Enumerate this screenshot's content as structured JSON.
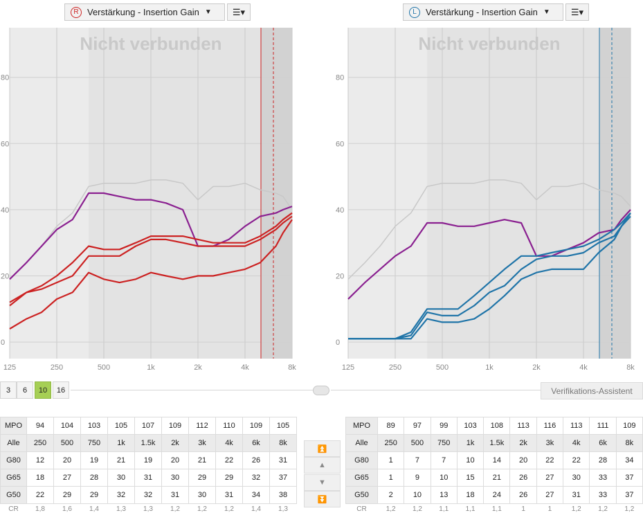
{
  "right_panel": {
    "side_badge": "R",
    "dropdown_label": "Verstärkung - Insertion Gain",
    "status_watermark": "Nicht verbunden",
    "accent_color": "#cc2222",
    "y_ticks": [
      "80",
      "60",
      "40",
      "20",
      "0"
    ],
    "x_ticks": [
      "125",
      "250",
      "500",
      "1k",
      "2k",
      "4k",
      "8k"
    ]
  },
  "left_panel": {
    "side_badge": "L",
    "dropdown_label": "Verstärkung - Insertion Gain",
    "status_watermark": "Nicht verbunden",
    "accent_color": "#1f74a8",
    "y_ticks": [
      "80",
      "60",
      "40",
      "20",
      "0"
    ],
    "x_ticks": [
      "125",
      "250",
      "500",
      "1k",
      "2k",
      "4k",
      "8k"
    ]
  },
  "menu_icon": "menu-list-icon",
  "channel_selector": {
    "options": [
      "3",
      "6",
      "10",
      "16"
    ],
    "active": "10"
  },
  "link_icon": "link-chain-icon",
  "verify_button": "Verifikations-Assistent",
  "nav_buttons": [
    "double-up-icon",
    "up-icon",
    "down-icon",
    "double-down-icon"
  ],
  "right_table": {
    "mpo_label": "MPO",
    "mpo": [
      "94",
      "104",
      "103",
      "105",
      "107",
      "109",
      "112",
      "110",
      "109",
      "105"
    ],
    "freq_label": "Alle",
    "freqs": [
      "250",
      "500",
      "750",
      "1k",
      "1.5k",
      "2k",
      "3k",
      "4k",
      "6k",
      "8k"
    ],
    "rows": [
      {
        "label": "G80",
        "values": [
          "12",
          "20",
          "19",
          "21",
          "19",
          "20",
          "21",
          "22",
          "26",
          "31"
        ]
      },
      {
        "label": "G65",
        "values": [
          "18",
          "27",
          "28",
          "30",
          "31",
          "30",
          "29",
          "29",
          "32",
          "37"
        ]
      },
      {
        "label": "G50",
        "values": [
          "22",
          "29",
          "29",
          "32",
          "32",
          "31",
          "30",
          "31",
          "34",
          "38"
        ]
      }
    ],
    "cr_label": "CR",
    "cr": [
      "1,8",
      "1,6",
      "1,4",
      "1,3",
      "1,3",
      "1,2",
      "1,2",
      "1,2",
      "1,4",
      "1,3"
    ]
  },
  "left_table": {
    "mpo_label": "MPO",
    "mpo": [
      "89",
      "97",
      "99",
      "103",
      "108",
      "113",
      "116",
      "113",
      "111",
      "109"
    ],
    "freq_label": "Alle",
    "freqs": [
      "250",
      "500",
      "750",
      "1k",
      "1.5k",
      "2k",
      "3k",
      "4k",
      "6k",
      "8k"
    ],
    "rows": [
      {
        "label": "G80",
        "values": [
          "1",
          "7",
          "7",
          "10",
          "14",
          "20",
          "22",
          "22",
          "28",
          "34"
        ]
      },
      {
        "label": "G65",
        "values": [
          "1",
          "9",
          "10",
          "15",
          "21",
          "26",
          "27",
          "30",
          "33",
          "37"
        ]
      },
      {
        "label": "G50",
        "values": [
          "2",
          "10",
          "13",
          "18",
          "24",
          "26",
          "27",
          "31",
          "33",
          "37"
        ]
      }
    ],
    "cr_label": "CR",
    "cr": [
      "1,2",
      "1,2",
      "1,1",
      "1,1",
      "1,1",
      "1",
      "1",
      "1,2",
      "1,2",
      "1,2"
    ]
  },
  "chart_data": [
    {
      "type": "line",
      "side": "R",
      "x_scale": "log",
      "x": [
        125,
        160,
        200,
        250,
        315,
        400,
        500,
        630,
        800,
        1000,
        1250,
        1600,
        2000,
        2500,
        3150,
        4000,
        5000,
        6300,
        7000,
        8000
      ],
      "ylim": [
        -5,
        95
      ],
      "series": [
        {
          "color": "#c8c8c8",
          "values": [
            19,
            24,
            29,
            35,
            39,
            47,
            48,
            48,
            48,
            49,
            49,
            48,
            43,
            47,
            47,
            48,
            46,
            45,
            44,
            40
          ]
        },
        {
          "color": "#8a2090",
          "values": [
            19,
            24,
            29,
            34,
            37,
            45,
            45,
            44,
            43,
            43,
            42,
            40,
            29,
            29,
            31,
            35,
            38,
            39,
            40,
            41
          ]
        },
        {
          "color": "#cc2222",
          "values": [
            11,
            15,
            17,
            20,
            24,
            29,
            28,
            28,
            30,
            32,
            32,
            32,
            31,
            30,
            30,
            30,
            32,
            35,
            37,
            39
          ]
        },
        {
          "color": "#cc2222",
          "values": [
            12,
            15,
            16,
            18,
            20,
            26,
            26,
            26,
            29,
            31,
            31,
            30,
            29,
            29,
            29,
            29,
            31,
            34,
            36,
            38
          ]
        },
        {
          "color": "#cc2222",
          "values": [
            4,
            7,
            9,
            13,
            15,
            21,
            19,
            18,
            19,
            21,
            20,
            19,
            20,
            20,
            21,
            22,
            24,
            29,
            33,
            37
          ]
        }
      ]
    },
    {
      "type": "line",
      "side": "L",
      "x_scale": "log",
      "x": [
        125,
        160,
        200,
        250,
        315,
        400,
        500,
        630,
        800,
        1000,
        1250,
        1600,
        2000,
        2500,
        3150,
        4000,
        5000,
        6300,
        7000,
        8000
      ],
      "ylim": [
        -5,
        95
      ],
      "series": [
        {
          "color": "#c8c8c8",
          "values": [
            19,
            24,
            29,
            35,
            39,
            47,
            48,
            48,
            48,
            49,
            49,
            48,
            43,
            47,
            47,
            48,
            46,
            45,
            44,
            41
          ]
        },
        {
          "color": "#8a2090",
          "values": [
            13,
            18,
            22,
            26,
            29,
            36,
            36,
            35,
            35,
            36,
            37,
            36,
            26,
            26,
            28,
            30,
            33,
            34,
            37,
            40
          ]
        },
        {
          "color": "#1f74a8",
          "values": [
            1,
            1,
            1,
            1,
            3,
            10,
            10,
            10,
            14,
            18,
            22,
            26,
            26,
            27,
            28,
            29,
            31,
            34,
            36,
            39
          ]
        },
        {
          "color": "#1f74a8",
          "values": [
            1,
            1,
            1,
            1,
            2,
            9,
            8,
            8,
            11,
            15,
            17,
            22,
            25,
            26,
            26,
            27,
            30,
            32,
            35,
            39
          ]
        },
        {
          "color": "#1f74a8",
          "values": [
            1,
            1,
            1,
            1,
            1,
            7,
            6,
            6,
            7,
            10,
            14,
            19,
            21,
            22,
            22,
            22,
            27,
            31,
            35,
            38
          ]
        }
      ]
    }
  ]
}
